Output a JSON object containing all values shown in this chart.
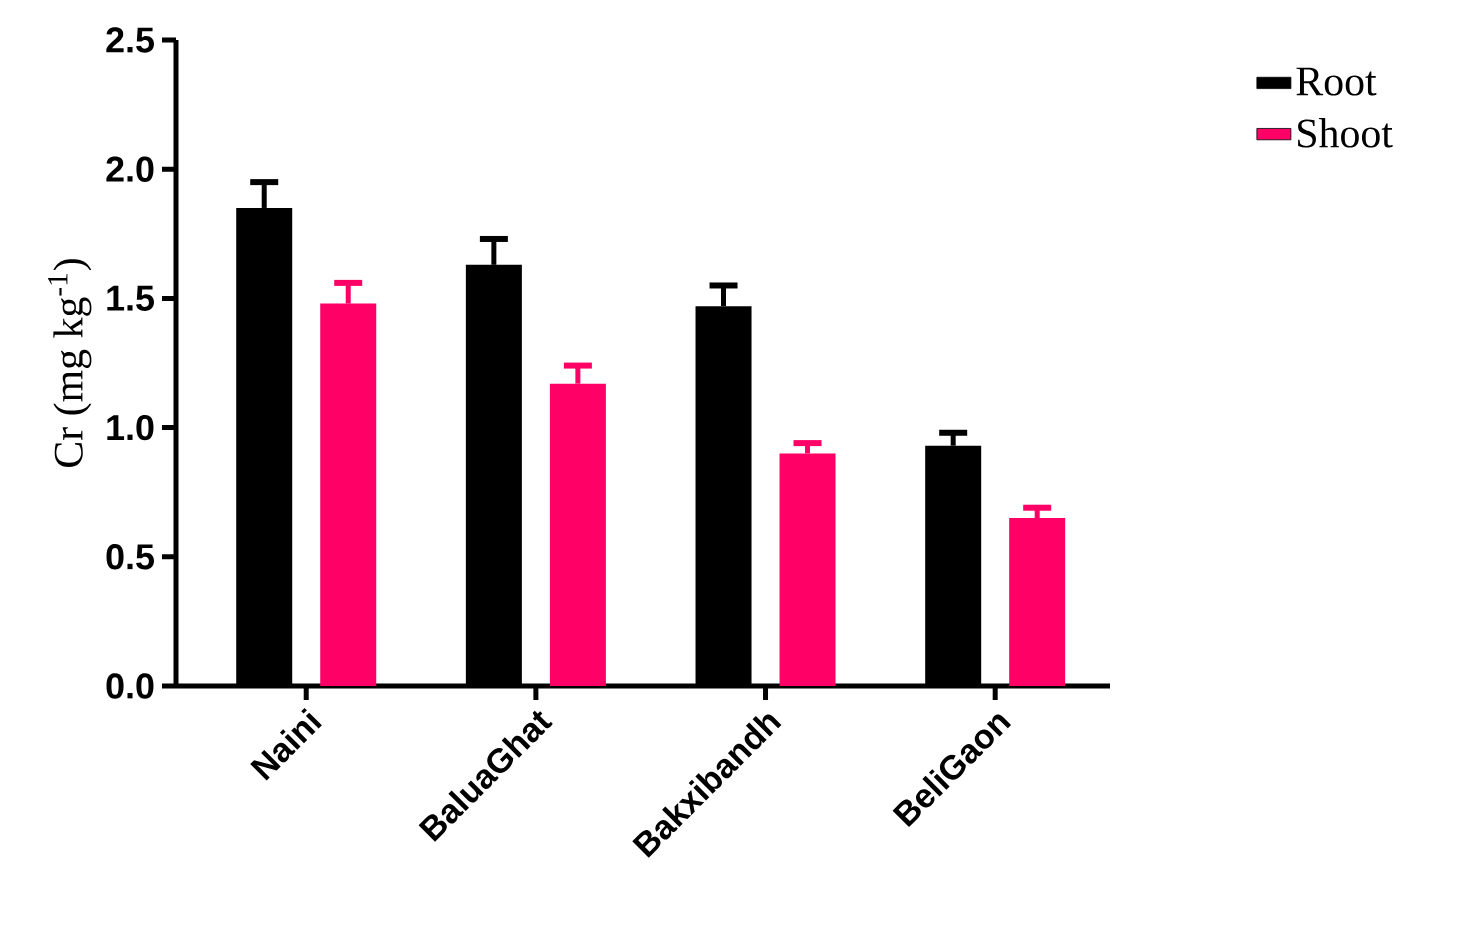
{
  "chart_data": {
    "type": "bar",
    "ylabel": "Cr (mg kg$^{-1}$)",
    "categories": [
      "Naini",
      "BaluaGhat",
      "Bakxibandh",
      "BeliGaon"
    ],
    "series": [
      {
        "name": "Root",
        "color": "#000000",
        "values": [
          1.85,
          1.63,
          1.47,
          0.93
        ],
        "errors": [
          0.1,
          0.1,
          0.08,
          0.05
        ]
      },
      {
        "name": "Shoot",
        "color": "#ff0066",
        "values": [
          1.48,
          1.17,
          0.9,
          0.65
        ],
        "errors": [
          0.08,
          0.07,
          0.04,
          0.04
        ]
      }
    ],
    "ylim": [
      0,
      2.5
    ],
    "yticks": [
      {
        "value": 0,
        "label": "0.0"
      },
      {
        "value": 0.5,
        "label": "0.5"
      },
      {
        "value": 1,
        "label": "1.0"
      },
      {
        "value": 1.5,
        "label": "1.5"
      },
      {
        "value": 2,
        "label": "2.0"
      },
      {
        "value": 2.5,
        "label": "2.5"
      }
    ],
    "legend": "top right"
  }
}
